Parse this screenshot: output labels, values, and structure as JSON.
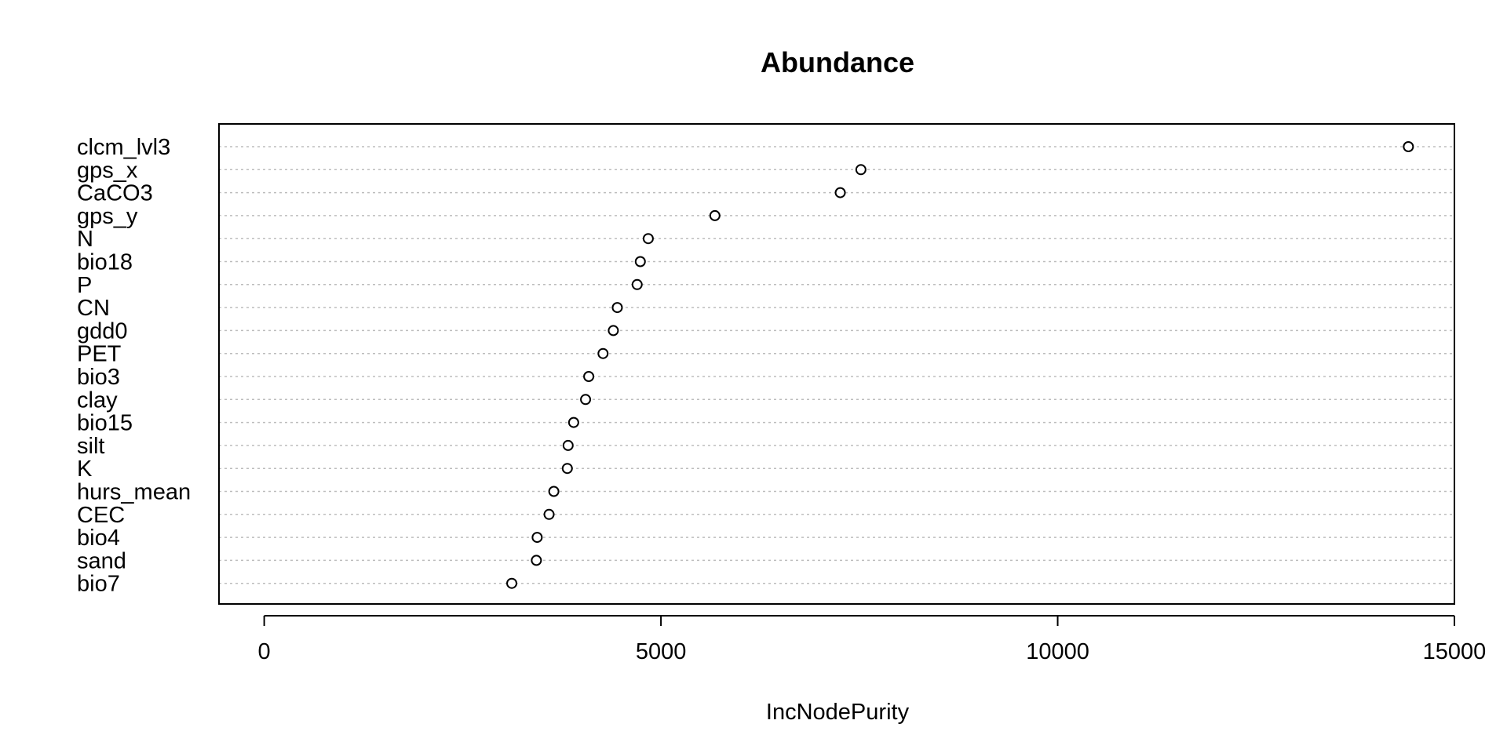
{
  "chart_data": {
    "type": "scatter",
    "title": "Abundance",
    "xlabel": "IncNodePurity",
    "ylabel": "",
    "xlim": [
      -570,
      15000
    ],
    "xticks": [
      0,
      5000,
      10000,
      15000
    ],
    "grid": "horizontal-dotted",
    "categories": [
      "clcm_lvl3",
      "gps_x",
      "CaCO3",
      "gps_y",
      "N",
      "bio18",
      "P",
      "CN",
      "gdd0",
      "PET",
      "bio3",
      "clay",
      "bio15",
      "silt",
      "K",
      "hurs_mean",
      "CEC",
      "bio4",
      "sand",
      "bio7"
    ],
    "values": [
      14420,
      7520,
      7260,
      5680,
      4840,
      4740,
      4700,
      4450,
      4400,
      4270,
      4090,
      4050,
      3900,
      3830,
      3820,
      3650,
      3590,
      3440,
      3430,
      3120
    ]
  }
}
